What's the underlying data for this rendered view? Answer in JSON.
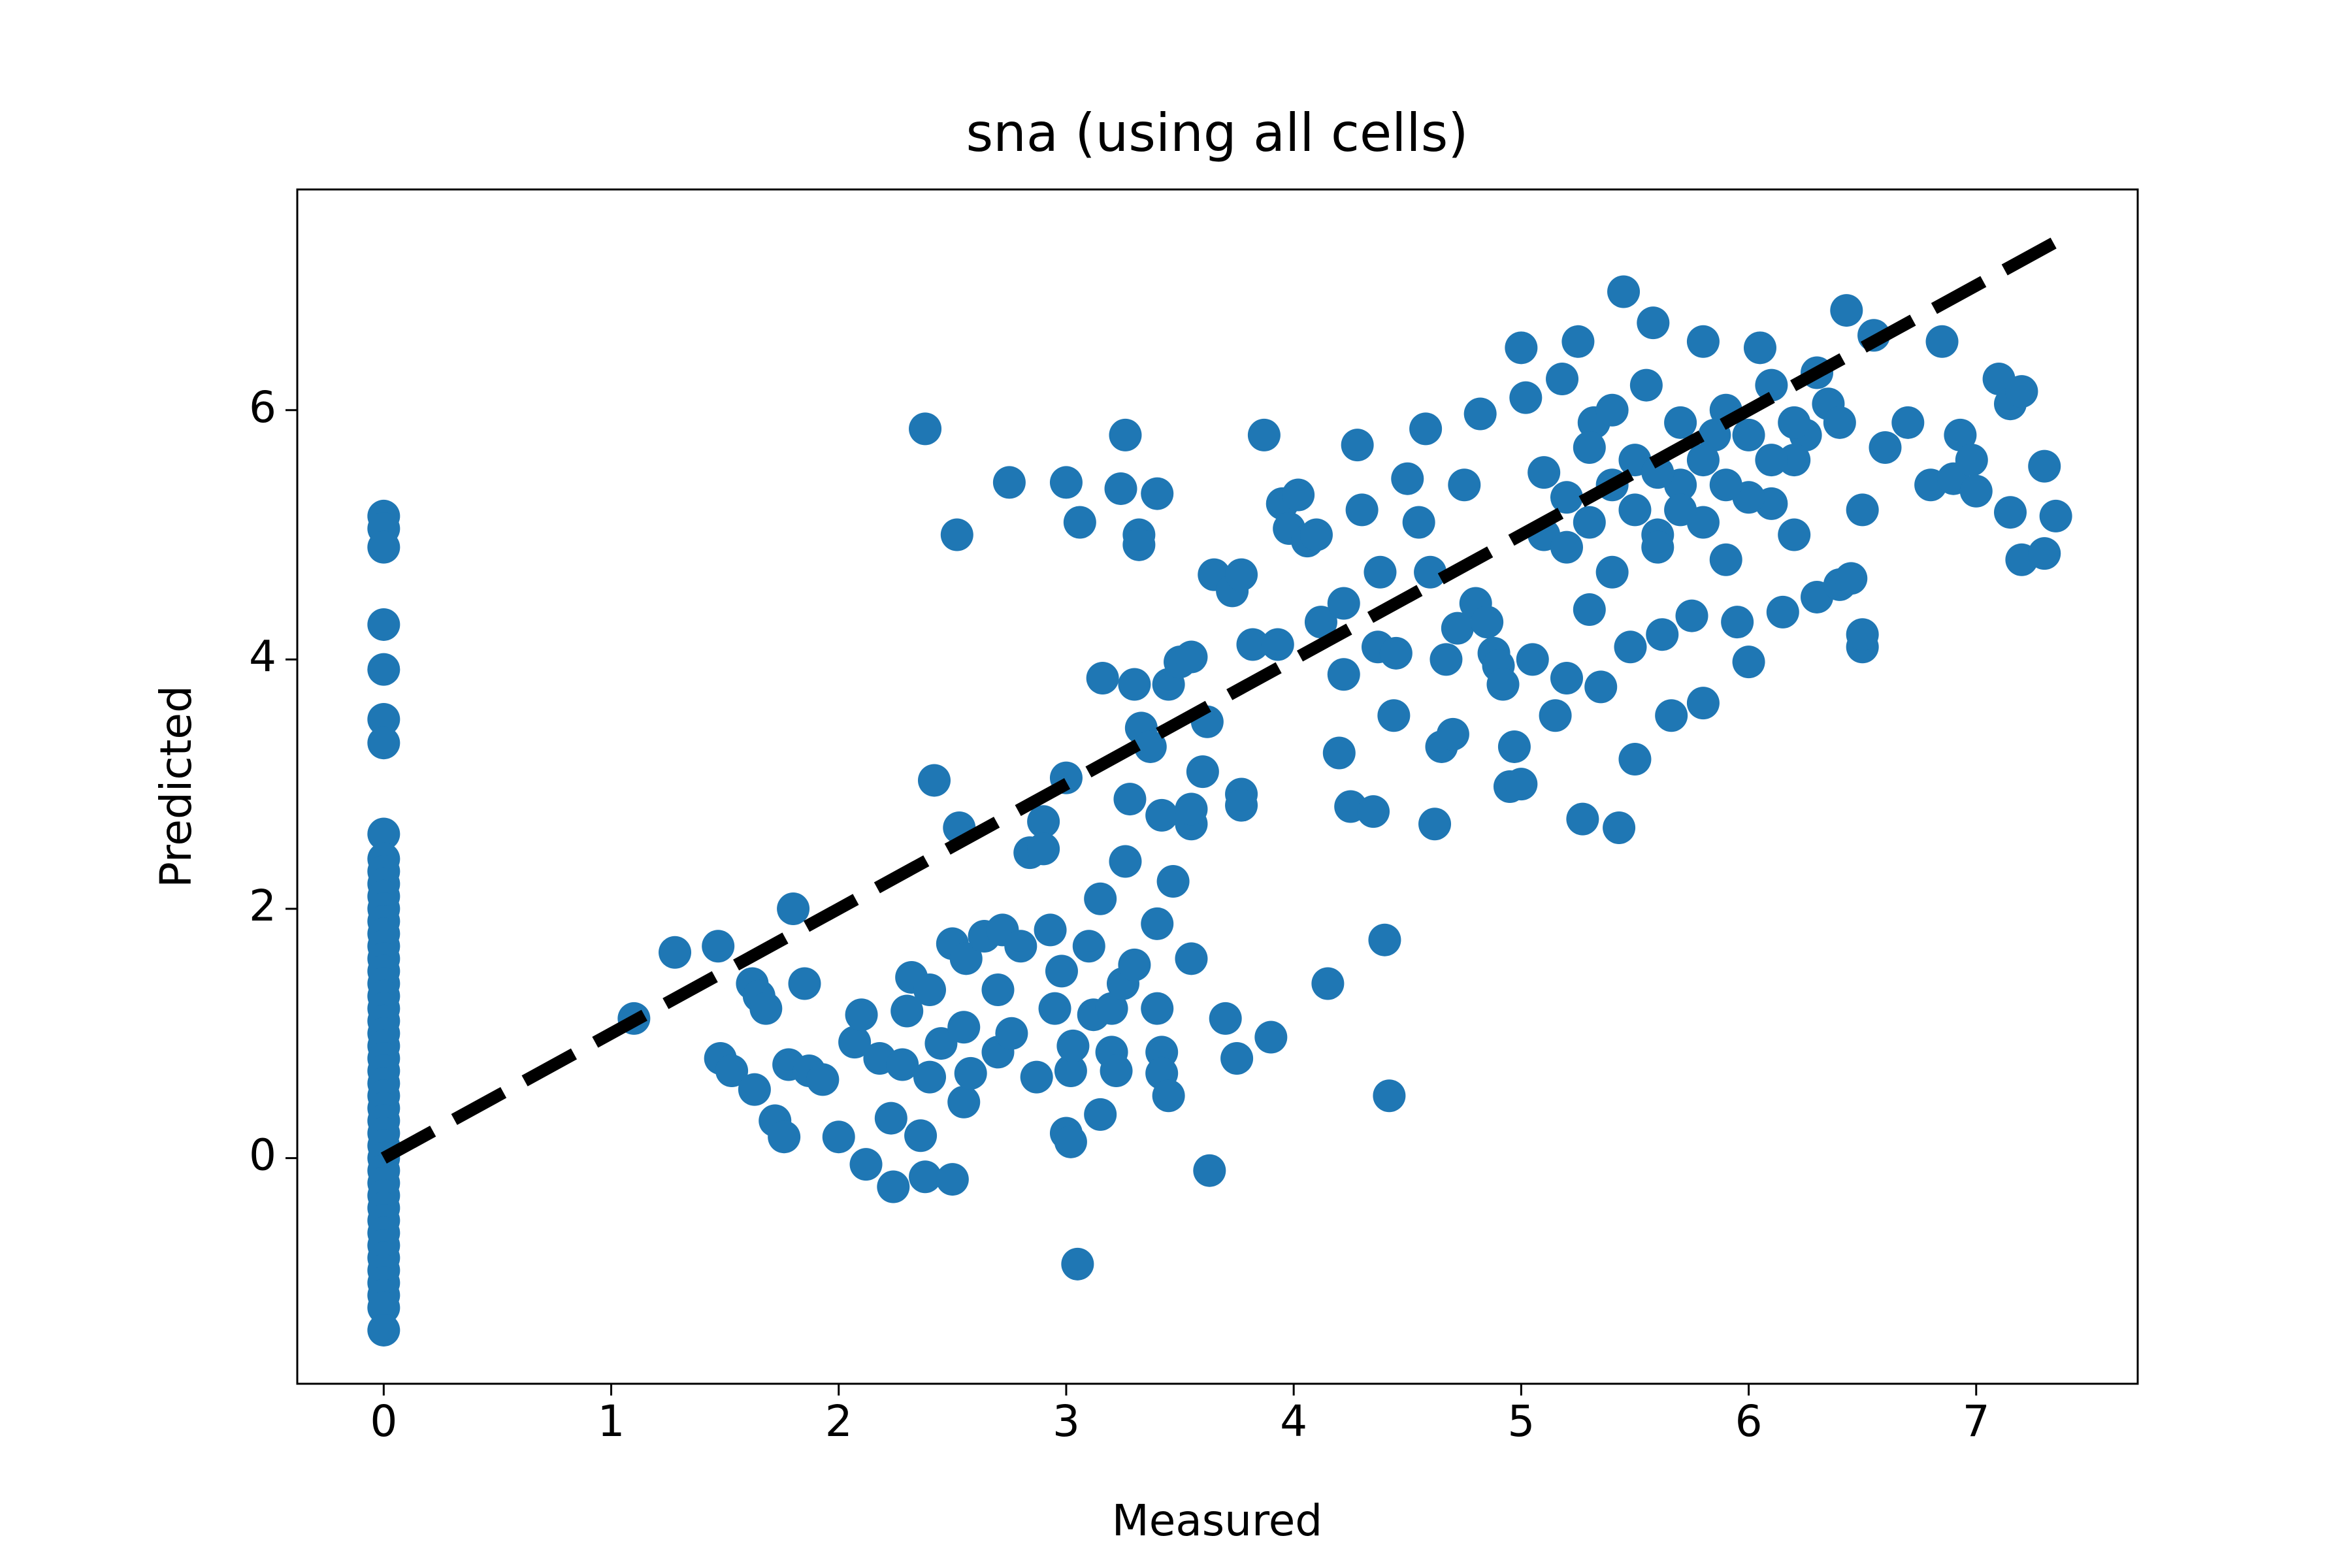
{
  "chart_data": {
    "type": "scatter",
    "title": "sna (using all cells)",
    "x_label": "Measured",
    "y_label": "Predicted",
    "xlim": [
      -0.38,
      7.71
    ],
    "ylim": [
      -1.81,
      7.77
    ],
    "xticks": [
      0,
      1,
      2,
      3,
      4,
      5,
      6,
      7
    ],
    "yticks": [
      0,
      2,
      4,
      6
    ],
    "series": [
      {
        "color": "#1f77b4",
        "x": [
          0,
          0,
          0,
          0,
          0,
          0,
          0,
          0,
          0,
          0,
          0,
          0,
          0,
          0,
          0,
          0,
          0,
          0,
          0,
          0,
          0,
          0,
          0,
          0,
          0,
          0,
          0,
          0,
          0,
          0,
          0,
          0,
          0,
          0,
          0,
          0,
          0,
          0,
          0,
          0,
          0,
          0,
          0,
          0,
          0,
          0,
          1.1,
          1.28,
          1.47,
          1.48,
          1.53,
          1.62,
          1.65,
          1.68,
          1.63,
          1.72,
          1.76,
          1.78,
          1.8,
          1.85,
          1.87,
          1.93,
          2.0,
          2.07,
          2.1,
          2.12,
          2.18,
          2.23,
          2.24,
          2.28,
          2.3,
          2.32,
          2.38,
          2.36,
          2.38,
          2.42,
          2.4,
          2.4,
          2.45,
          2.5,
          2.5,
          2.52,
          2.53,
          2.55,
          2.56,
          2.55,
          2.58,
          2.64,
          2.7,
          2.7,
          2.72,
          2.76,
          2.75,
          2.8,
          2.84,
          2.87,
          2.9,
          2.9,
          2.93,
          2.95,
          2.98,
          3.0,
          3.0,
          3.0,
          3.02,
          3.02,
          3.03,
          3.05,
          3.06,
          3.1,
          3.12,
          3.15,
          3.15,
          3.16,
          3.2,
          3.2,
          3.22,
          3.24,
          3.26,
          3.25,
          3.26,
          3.28,
          3.3,
          3.3,
          3.32,
          3.32,
          3.33,
          3.37,
          3.4,
          3.4,
          3.42,
          3.42,
          3.45,
          3.4,
          3.42,
          3.45,
          3.47,
          3.5,
          3.55,
          3.55,
          3.55,
          3.55,
          3.6,
          3.62,
          3.63,
          3.65,
          3.7,
          3.73,
          3.75,
          3.77,
          3.77,
          3.77,
          3.82,
          3.87,
          3.9,
          3.93,
          3.95,
          3.98,
          4.02,
          4.06,
          4.1,
          4.12,
          4.15,
          4.2,
          4.22,
          4.22,
          4.25,
          4.28,
          4.3,
          4.35,
          4.37,
          4.38,
          4.4,
          4.42,
          4.44,
          4.45,
          4.5,
          4.55,
          4.58,
          4.6,
          4.62,
          4.65,
          4.67,
          4.7,
          4.72,
          4.75,
          4.8,
          4.82,
          4.85,
          4.88,
          4.9,
          4.92,
          4.95,
          4.97,
          5.0,
          5.0,
          5.02,
          5.05,
          5.1,
          5.15,
          5.18,
          5.2,
          5.25,
          5.27,
          5.3,
          5.32,
          5.35,
          5.4,
          5.43,
          5.45,
          5.48,
          5.5,
          5.55,
          5.58,
          5.6,
          5.62,
          5.66,
          5.7,
          5.75,
          5.8,
          5.8,
          5.85,
          5.9,
          5.95,
          6.0,
          6.05,
          6.1,
          6.15,
          6.2,
          6.25,
          6.3,
          6.35,
          6.4,
          6.43,
          6.45,
          6.5,
          6.5,
          6.5,
          6.55,
          6.6,
          6.7,
          6.8,
          6.85,
          6.9,
          6.93,
          6.98,
          7.0,
          7.1,
          7.15,
          7.15,
          7.2,
          7.2,
          7.3,
          7.3,
          7.35,
          5.1,
          5.2,
          5.3,
          5.4,
          5.5,
          5.6,
          5.7,
          5.8,
          5.9,
          6.0,
          6.1,
          6.2,
          6.3,
          5.2,
          5.4,
          5.6,
          5.8,
          6.0,
          6.2,
          6.4,
          5.3,
          5.5,
          5.7,
          5.9,
          6.1
        ],
        "y": [
          5.15,
          5.05,
          4.9,
          4.28,
          3.92,
          3.52,
          3.33,
          2.6,
          2.4,
          2.3,
          2.2,
          2.1,
          2.0,
          1.9,
          1.8,
          1.7,
          1.6,
          1.5,
          1.4,
          1.3,
          1.2,
          1.1,
          1.0,
          0.9,
          0.8,
          0.7,
          0.6,
          0.5,
          0.4,
          0.3,
          0.2,
          0.1,
          0,
          -0.1,
          -0.2,
          -0.3,
          -0.4,
          -0.5,
          -0.6,
          -0.7,
          -0.8,
          -0.9,
          -1.0,
          -1.1,
          -1.2,
          -1.38,
          1.12,
          1.65,
          1.7,
          0.8,
          0.7,
          1.4,
          1.3,
          1.2,
          0.55,
          0.3,
          0.17,
          0.75,
          2.0,
          1.4,
          0.7,
          0.63,
          0.17,
          0.93,
          1.15,
          -0.05,
          0.8,
          0.32,
          -0.23,
          0.75,
          1.18,
          1.45,
          5.85,
          0.18,
          -0.15,
          3.03,
          1.35,
          0.65,
          0.92,
          1.72,
          -0.17,
          5.0,
          2.65,
          1.05,
          1.6,
          0.45,
          0.68,
          1.78,
          1.35,
          0.85,
          1.83,
          1.0,
          5.42,
          1.7,
          2.45,
          0.65,
          2.7,
          2.48,
          1.83,
          1.2,
          1.5,
          3.05,
          5.42,
          0.2,
          0.13,
          0.7,
          0.9,
          -0.85,
          5.1,
          1.7,
          1.15,
          0.35,
          2.08,
          3.85,
          0.85,
          1.2,
          0.7,
          5.37,
          5.8,
          1.4,
          2.38,
          2.88,
          1.55,
          3.8,
          5.0,
          4.92,
          3.45,
          3.3,
          1.88,
          1.2,
          0.85,
          0.68,
          0.5,
          5.33,
          2.75,
          3.8,
          2.22,
          3.98,
          4.02,
          1.6,
          2.68,
          2.8,
          3.1,
          3.5,
          -0.1,
          4.68,
          1.12,
          4.55,
          0.8,
          2.92,
          2.83,
          4.68,
          4.12,
          5.8,
          0.97,
          4.12,
          5.25,
          5.05,
          5.32,
          4.95,
          5.0,
          4.3,
          1.4,
          3.25,
          4.45,
          3.88,
          2.82,
          5.72,
          5.2,
          2.78,
          4.1,
          4.7,
          1.75,
          0.5,
          3.55,
          4.05,
          5.45,
          5.1,
          5.85,
          4.7,
          2.68,
          3.3,
          4.0,
          3.4,
          4.25,
          5.4,
          4.45,
          5.97,
          4.3,
          4.05,
          3.95,
          3.8,
          2.98,
          3.3,
          3.0,
          6.5,
          6.1,
          4.0,
          5.5,
          3.55,
          6.25,
          3.85,
          6.55,
          2.72,
          4.4,
          5.9,
          3.78,
          6.0,
          2.65,
          6.95,
          4.1,
          3.2,
          6.2,
          6.7,
          5.0,
          4.2,
          3.55,
          5.4,
          4.35,
          3.65,
          6.55,
          5.8,
          4.8,
          4.3,
          3.98,
          6.5,
          5.25,
          4.38,
          5.0,
          5.8,
          4.5,
          6.05,
          4.6,
          6.8,
          4.65,
          4.1,
          4.2,
          5.2,
          6.6,
          5.7,
          5.9,
          5.4,
          6.55,
          5.45,
          5.8,
          5.6,
          5.35,
          6.25,
          6.05,
          5.18,
          6.15,
          4.8,
          4.85,
          5.55,
          5.15,
          5.0,
          5.3,
          5.1,
          5.4,
          5.6,
          5.5,
          5.9,
          5.6,
          6.0,
          5.8,
          6.2,
          5.6,
          6.3,
          4.9,
          4.7,
          4.9,
          5.1,
          5.3,
          5.9,
          5.9,
          5.7,
          5.2,
          5.2,
          5.4,
          5.6
        ]
      }
    ],
    "line": {
      "x": [
        0,
        7.34
      ],
      "y": [
        0,
        7.34
      ],
      "color": "#000000",
      "style": "dashed"
    }
  }
}
